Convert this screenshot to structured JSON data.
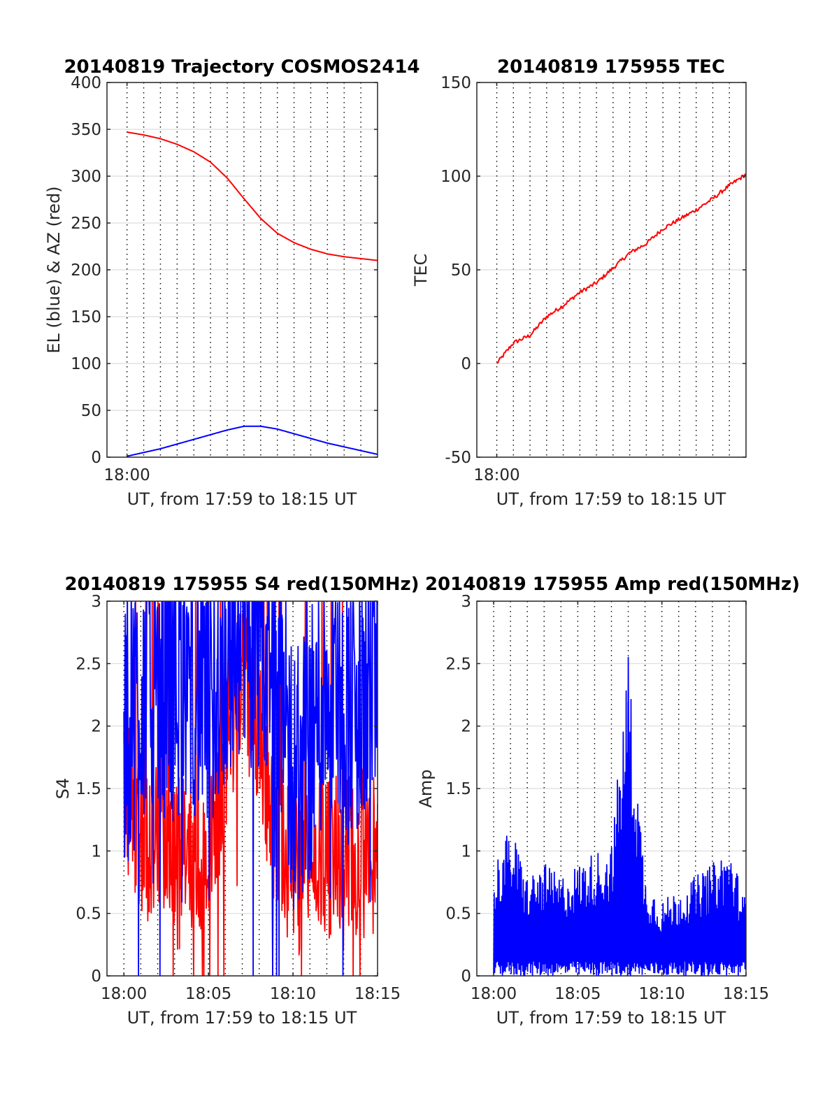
{
  "chart_data": [
    {
      "type": "line",
      "title": "20140819 Trajectory COSMOS2414",
      "xlabel": "UT, from 17:59 to 18:15 UT",
      "ylabel": "EL (blue) & AZ (red)",
      "xlim": [
        17.98,
        18.25
      ],
      "ylim": [
        0,
        400
      ],
      "yticks": [
        0,
        50,
        100,
        150,
        200,
        250,
        300,
        350,
        400
      ],
      "xticks": [
        {
          "value": 18.0,
          "label": "18:00"
        }
      ],
      "grid": true,
      "series": [
        {
          "color": "#ff0000",
          "x": [
            18.0,
            18.0167,
            18.0333,
            18.05,
            18.0667,
            18.0833,
            18.1,
            18.1167,
            18.1333,
            18.15,
            18.1667,
            18.1833,
            18.2,
            18.2167,
            18.2333,
            18.25
          ],
          "values": [
            347,
            344,
            340,
            334,
            326,
            315,
            298,
            276,
            255,
            239,
            229,
            222,
            217,
            214,
            212,
            210
          ]
        },
        {
          "color": "#0000ff",
          "x": [
            18.0,
            18.0167,
            18.0333,
            18.05,
            18.0667,
            18.0833,
            18.1,
            18.1167,
            18.1333,
            18.15,
            18.1667,
            18.1833,
            18.2,
            18.2167,
            18.2333,
            18.25
          ],
          "values": [
            1,
            5,
            9,
            14,
            19,
            24,
            29,
            33,
            33,
            30,
            25,
            20,
            15,
            11,
            7,
            3
          ]
        }
      ]
    },
    {
      "type": "line",
      "title": "20140819 175955 TEC",
      "xlabel": "UT, from 17:59 to 18:15 UT",
      "ylabel": "TEC",
      "xlim": [
        17.98,
        18.25
      ],
      "ylim": [
        -50,
        150
      ],
      "yticks": [
        -50,
        0,
        50,
        100,
        150
      ],
      "xticks": [
        {
          "value": 18.0,
          "label": "18:00"
        }
      ],
      "grid": true,
      "series": [
        {
          "color": "#ff0000",
          "x": [
            18.0,
            18.0167,
            18.0333,
            18.05,
            18.0667,
            18.0833,
            18.1,
            18.1167,
            18.1333,
            18.15,
            18.1667,
            18.1833,
            18.2,
            18.2167,
            18.2333,
            18.25
          ],
          "values": [
            0,
            11,
            15,
            25,
            31,
            38,
            43,
            51,
            59,
            64,
            72,
            77,
            82,
            88,
            95,
            101
          ]
        }
      ]
    },
    {
      "type": "line",
      "title": "20140819 175955 S4 red(150MHz)",
      "xlabel": "UT, from 17:59 to 18:15 UT",
      "ylabel": "S4",
      "xlim": [
        "17:59",
        "18:15"
      ],
      "ylim": [
        0,
        3
      ],
      "yticks": [
        0,
        0.5,
        1,
        1.5,
        2,
        2.5,
        3
      ],
      "xticks": [
        "18:00",
        "18:05",
        "18:10",
        "18:15"
      ],
      "grid": true,
      "series": [
        {
          "color": "#ff0000",
          "x": [
            "18:00",
            "18:01",
            "18:02",
            "18:03",
            "18:04",
            "18:05",
            "18:06",
            "18:07",
            "18:08",
            "18:09",
            "18:10",
            "18:11",
            "18:12",
            "18:13",
            "18:14",
            "18:15"
          ],
          "values": [
            1.5,
            1.2,
            1.0,
            0.9,
            0.9,
            0.8,
            1.8,
            2.5,
            2.0,
            1.1,
            0.9,
            0.8,
            1.0,
            0.9,
            1.0,
            0.9
          ]
        },
        {
          "color": "#0000ff",
          "x": [
            "18:00",
            "18:01",
            "18:02",
            "18:03",
            "18:04",
            "18:05",
            "18:06",
            "18:07",
            "18:08",
            "18:09",
            "18:10",
            "18:11",
            "18:12",
            "18:13",
            "18:14",
            "18:15"
          ],
          "values": [
            1.8,
            2.3,
            2.4,
            2.3,
            2.4,
            2.2,
            2.6,
            2.9,
            2.5,
            2.5,
            1.6,
            1.8,
            2.4,
            2.2,
            2.0,
            2.8
          ]
        }
      ]
    },
    {
      "type": "line",
      "title": "20140819 175955 Amp red(150MHz)",
      "xlabel": "UT, from 17:59 to 18:15 UT",
      "ylabel": "Amp",
      "xlim": [
        "17:59",
        "18:15"
      ],
      "ylim": [
        0,
        3
      ],
      "yticks": [
        0,
        0.5,
        1,
        1.5,
        2,
        2.5,
        3
      ],
      "xticks": [
        "18:00",
        "18:05",
        "18:10",
        "18:15"
      ],
      "grid": true,
      "series": [
        {
          "color": "#0000ff",
          "x": [
            "18:00",
            "18:01",
            "18:02",
            "18:03",
            "18:04",
            "18:05",
            "18:06",
            "18:07",
            "18:08",
            "18:09",
            "18:10",
            "18:11",
            "18:12",
            "18:13",
            "18:14",
            "18:15"
          ],
          "values": [
            0.9,
            1.2,
            0.8,
            0.9,
            0.8,
            0.9,
            1.0,
            1.05,
            2.55,
            0.8,
            0.6,
            0.7,
            0.8,
            0.9,
            1.05,
            0.6
          ]
        }
      ]
    }
  ]
}
